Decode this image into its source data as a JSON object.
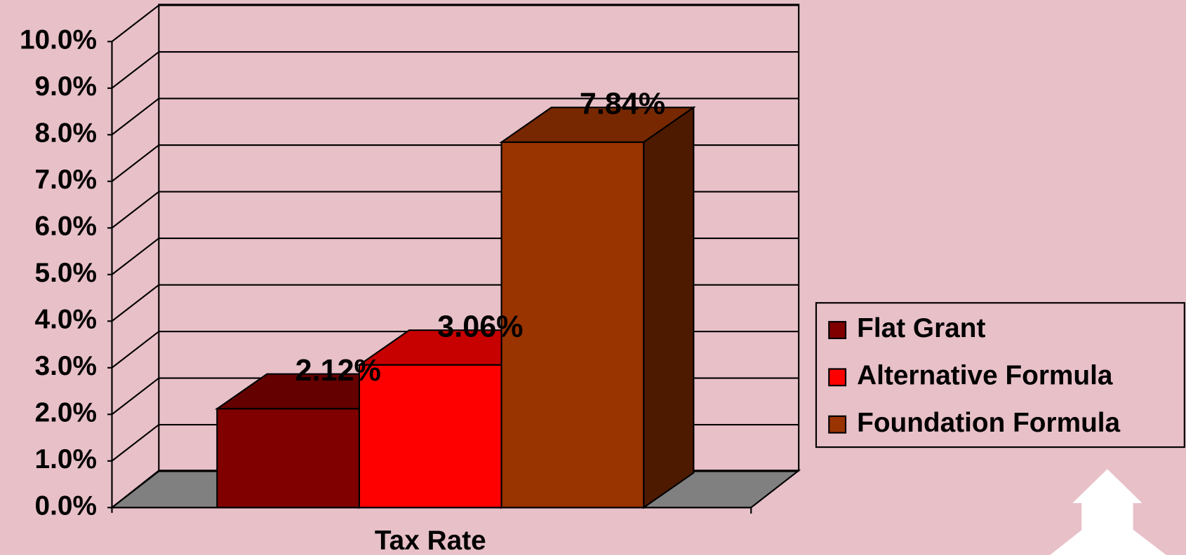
{
  "chart_data": {
    "type": "bar",
    "categories": [
      "Tax Rate"
    ],
    "series": [
      {
        "name": "Flat Grant",
        "color": "#800000",
        "values": [
          2.12
        ],
        "value_labels": [
          "2.12%"
        ]
      },
      {
        "name": "Alternative Formula",
        "color": "#ff0000",
        "values": [
          3.06
        ],
        "value_labels": [
          "3.06%"
        ]
      },
      {
        "name": "Foundation Formula",
        "color": "#993300",
        "values": [
          7.84
        ],
        "value_labels": [
          "7.84%"
        ]
      }
    ],
    "ylim": [
      0,
      10
    ],
    "yticks": [
      {
        "value": 0,
        "label": "0.0%"
      },
      {
        "value": 1,
        "label": "1.0%"
      },
      {
        "value": 2,
        "label": "2.0%"
      },
      {
        "value": 3,
        "label": "3.0%"
      },
      {
        "value": 4,
        "label": "4.0%"
      },
      {
        "value": 5,
        "label": "5.0%"
      },
      {
        "value": 6,
        "label": "6.0%"
      },
      {
        "value": 7,
        "label": "7.0%"
      },
      {
        "value": 8,
        "label": "8.0%"
      },
      {
        "value": 9,
        "label": "9.0%"
      },
      {
        "value": 10,
        "label": "10.0%"
      }
    ],
    "grid": true,
    "legend": "right"
  }
}
